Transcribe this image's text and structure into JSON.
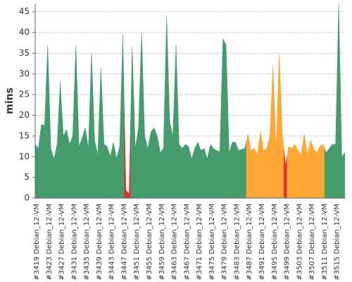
{
  "chart_data": {
    "type": "area",
    "ylabel": "mins",
    "categories": [
      "#3419 Debian_12-VM",
      null,
      null,
      null,
      "#3423 Debian_12-VM",
      null,
      null,
      null,
      "#3427 Debian_12-VM",
      null,
      null,
      null,
      "#3431 Debian_12-VM",
      null,
      null,
      null,
      "#3435 Debian_12-VM",
      null,
      null,
      null,
      "#3439 Debian_12-VM",
      null,
      null,
      null,
      "#3443 Debian_12-VM",
      null,
      null,
      null,
      "#3447 Debian_12-VM",
      null,
      null,
      null,
      "#3451 Debian_12-VM",
      null,
      null,
      null,
      "#3455 Debian_12-VM",
      null,
      null,
      null,
      "#3459 Debian_12-VM",
      null,
      null,
      null,
      "#3463 Debian_12-VM",
      null,
      null,
      null,
      "#3467 Debian_12-VM",
      null,
      null,
      null,
      "#3471 Debian_12-VM",
      null,
      null,
      null,
      "#3475 Debian_12-VM",
      null,
      null,
      null,
      "#3479 Debian_12-VM",
      null,
      null,
      null,
      "#3483 Debian_12-VM",
      null,
      null,
      null,
      "#3487 Debian_12-VM",
      null,
      null,
      null,
      "#3491 Debian_12-VM",
      null,
      null,
      null,
      "#3495 Debian_12-VM",
      null,
      null,
      null,
      "#3499 Debian_12-VM",
      null,
      null,
      null,
      "#3503 Debian_12-VM",
      null,
      null,
      null,
      "#3507 Debian_12-VM",
      null,
      null,
      null,
      "#3511 Debian_12-VM",
      null,
      null,
      null,
      "#3515 Debian_12-VM",
      null,
      null,
      null
    ],
    "values": [
      13,
      12,
      17.8,
      17.5,
      37,
      12,
      9.5,
      13,
      28,
      15,
      16.5,
      13,
      15,
      37,
      12.5,
      14.5,
      17,
      12,
      35,
      14,
      10.5,
      31.5,
      13,
      12.5,
      10,
      13.5,
      9.5,
      12.5,
      39.5,
      2,
      1,
      36.5,
      12,
      17,
      40,
      15,
      12,
      16,
      17,
      15,
      11,
      12,
      44,
      18.5,
      15,
      37,
      13,
      12,
      13,
      12.5,
      9.5,
      12,
      13.5,
      11.5,
      12,
      9.5,
      13,
      12,
      11.5,
      11.2,
      38.5,
      37,
      11,
      13.5,
      13.5,
      11.5,
      11.8,
      12,
      15.5,
      11.5,
      12,
      10.5,
      16,
      11.5,
      12,
      15,
      32,
      12,
      35,
      15,
      8,
      12.5,
      12,
      13,
      11.5,
      10.5,
      15.5,
      10.5,
      14,
      12,
      11,
      12.5,
      13,
      11,
      12,
      13,
      13,
      47,
      10,
      11
    ],
    "point_colors": [
      "#459c6c",
      "#459c6c",
      "#459c6c",
      "#459c6c",
      "#459c6c",
      "#459c6c",
      "#459c6c",
      "#459c6c",
      "#459c6c",
      "#459c6c",
      "#459c6c",
      "#459c6c",
      "#459c6c",
      "#459c6c",
      "#459c6c",
      "#459c6c",
      "#459c6c",
      "#459c6c",
      "#459c6c",
      "#459c6c",
      "#459c6c",
      "#459c6c",
      "#459c6c",
      "#459c6c",
      "#459c6c",
      "#459c6c",
      "#459c6c",
      "#459c6c",
      "#459c6c",
      "#e03030",
      "#e03030",
      "#459c6c",
      "#459c6c",
      "#459c6c",
      "#459c6c",
      "#459c6c",
      "#459c6c",
      "#459c6c",
      "#459c6c",
      "#459c6c",
      "#459c6c",
      "#459c6c",
      "#459c6c",
      "#459c6c",
      "#459c6c",
      "#459c6c",
      "#459c6c",
      "#459c6c",
      "#459c6c",
      "#459c6c",
      "#459c6c",
      "#459c6c",
      "#459c6c",
      "#459c6c",
      "#459c6c",
      "#459c6c",
      "#459c6c",
      "#459c6c",
      "#459c6c",
      "#459c6c",
      "#459c6c",
      "#459c6c",
      "#459c6c",
      "#459c6c",
      "#459c6c",
      "#459c6c",
      "#459c6c",
      "#459c6c",
      "#ffa733",
      "#ffa733",
      "#ffa733",
      "#ffa733",
      "#ffa733",
      "#ffa733",
      "#ffa733",
      "#ffa733",
      "#ffa733",
      "#ffa733",
      "#ffa733",
      "#ffa733",
      "#e03030",
      "#ffa733",
      "#ffa733",
      "#ffa733",
      "#ffa733",
      "#ffa733",
      "#ffa733",
      "#ffa733",
      "#ffa733",
      "#ffa733",
      "#ffa733",
      "#ffa733",
      "#ffa733",
      "#459c6c",
      "#459c6c",
      "#459c6c",
      "#459c6c",
      "#459c6c",
      "#459c6c",
      "#459c6c"
    ],
    "ylim": [
      0,
      47
    ],
    "yticks": [
      0,
      5,
      10,
      15,
      20,
      25,
      30,
      35,
      40,
      45
    ],
    "grid": true
  }
}
